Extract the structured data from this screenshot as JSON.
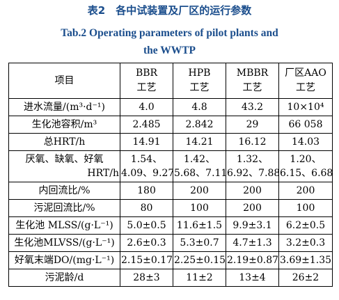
{
  "title": {
    "cn": "表2　各中试装置及厂区的运行参数",
    "en": "Tab.2    Operating  parameters  of  pilot  plants  and\nthe  WWTP"
  },
  "table": {
    "header": {
      "param": "项目",
      "cols": [
        {
          "line1": "BBR",
          "line2": "工艺"
        },
        {
          "line1": "HPB",
          "line2": "工艺"
        },
        {
          "line1": "MBBR",
          "line2": "工艺"
        },
        {
          "line1": "厂区AAO",
          "line2": "工艺"
        }
      ]
    },
    "rows": [
      {
        "param": "进水流量/(m³·d⁻¹)",
        "values": [
          "4.0",
          "4.8",
          "43.2",
          "10×10⁴"
        ]
      },
      {
        "param": "生化池容积/m³",
        "values": [
          "2.485",
          "2.842",
          "29",
          "66 058"
        ]
      },
      {
        "param": "总HRT/h",
        "values": [
          "14.91",
          "14.21",
          "16.12",
          "14.03"
        ]
      },
      {
        "param_line1": "厌氧、缺氧、好氧",
        "param_line2": "HRT/h",
        "values": [
          {
            "line1": "1.54、",
            "line2": "4.09、9.27"
          },
          {
            "line1": "1.42、",
            "line2": "5.68、7.11"
          },
          {
            "line1": "1.32、",
            "line2": "6.92、7.88"
          },
          {
            "line1": "1.20、",
            "line2": "6.15、6.68"
          }
        ]
      },
      {
        "param": "内回流比/%",
        "values": [
          "180",
          "200",
          "200",
          "200"
        ]
      },
      {
        "param": "污泥回流比/%",
        "values": [
          "80",
          "100",
          "200",
          "100"
        ]
      },
      {
        "param": "生化池 MLSS/(g·L⁻¹)",
        "values": [
          "5.0±0.5",
          "11.6±1.5",
          "9.9±3.1",
          "6.2±0.5"
        ]
      },
      {
        "param": "生化池MLVSS/(g·L⁻¹)",
        "values": [
          "2.6±0.3",
          "5.3±0.7",
          "4.7±1.3",
          "3.2±0.3"
        ]
      },
      {
        "param": "好氧末端DO/(mg·L⁻¹)",
        "values": [
          "2.15±0.17",
          "2.25±0.15",
          "2.19±0.87",
          "3.69±1.35"
        ]
      },
      {
        "param": "污泥龄/d",
        "values": [
          "28±3",
          "11±2",
          "13±4",
          "26±2"
        ]
      }
    ]
  }
}
